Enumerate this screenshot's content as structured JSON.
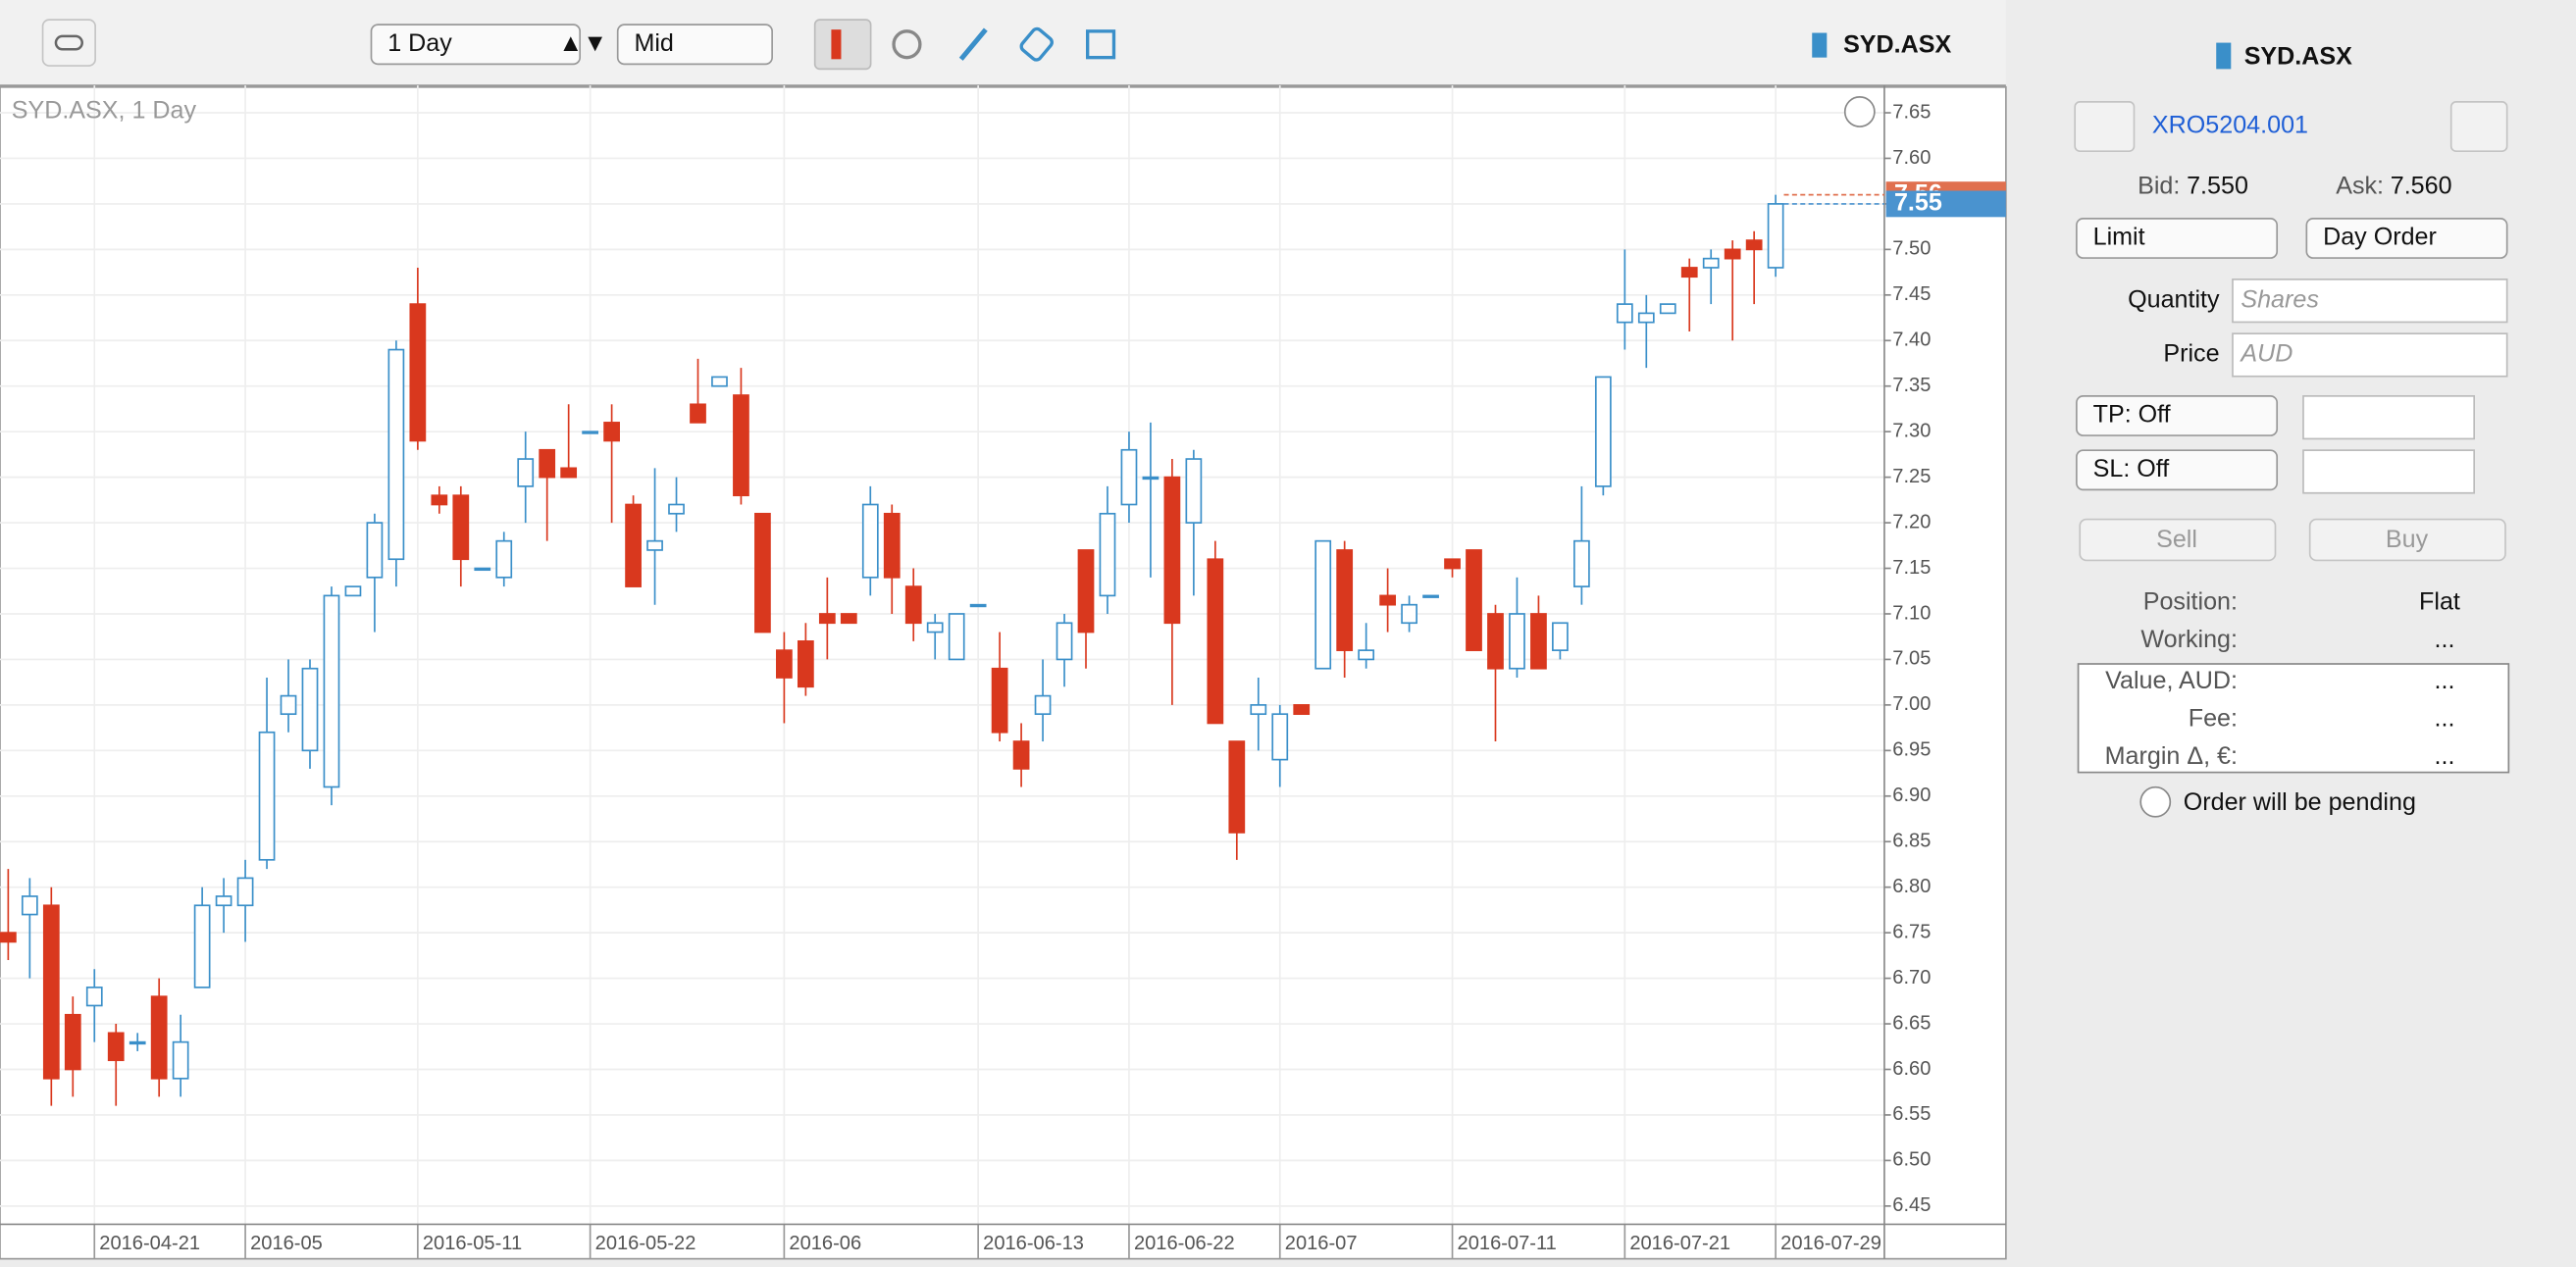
{
  "toolbar": {
    "timeframe": "1 Day",
    "price_type": "Mid",
    "symbol": "SYD.ASX"
  },
  "chart_data": {
    "type": "candlestick",
    "title": "SYD.ASX, 1 Day",
    "categories": [
      null,
      null,
      null,
      null,
      "2016-04-21",
      null,
      null,
      null,
      null,
      null,
      null,
      "2016-05",
      null,
      null,
      null,
      null,
      null,
      null,
      null,
      "2016-05-11",
      null,
      null,
      null,
      null,
      null,
      null,
      null,
      "2016-05-22",
      null,
      null,
      null,
      null,
      null,
      null,
      null,
      null,
      "2016-06",
      null,
      null,
      null,
      null,
      null,
      null,
      null,
      null,
      "2016-06-13",
      null,
      null,
      null,
      null,
      null,
      null,
      "2016-06-22",
      null,
      null,
      null,
      null,
      null,
      null,
      "2016-07",
      null,
      null,
      null,
      null,
      null,
      null,
      null,
      "2016-07-11",
      null,
      null,
      null,
      null,
      null,
      null,
      null,
      "2016-07-21",
      null,
      null,
      null,
      null,
      null,
      null,
      "2016-07-29"
    ],
    "open": [
      6.75,
      6.77,
      6.78,
      6.66,
      6.67,
      6.64,
      6.63,
      6.68,
      6.59,
      6.69,
      6.78,
      6.78,
      6.83,
      6.99,
      6.95,
      6.91,
      7.12,
      7.14,
      7.16,
      7.44,
      7.23,
      7.23,
      7.15,
      7.14,
      7.24,
      7.28,
      7.26,
      7.3,
      7.31,
      7.22,
      7.17,
      7.21,
      7.33,
      7.35,
      7.34,
      7.21,
      7.06,
      7.07,
      7.1,
      7.1,
      7.14,
      7.21,
      7.13,
      7.08,
      7.05,
      7.11,
      7.04,
      6.96,
      6.99,
      7.05,
      7.17,
      7.12,
      7.22,
      7.25,
      7.25,
      7.2,
      7.16,
      6.96,
      6.99,
      6.94,
      7.0,
      7.04,
      7.17,
      7.05,
      7.12,
      7.09,
      7.12,
      7.16,
      7.17,
      7.1,
      7.04,
      7.1,
      7.06,
      7.13,
      7.24,
      7.42,
      7.42,
      7.43,
      7.48,
      7.48,
      7.5,
      7.51,
      7.48
    ],
    "high": [
      6.82,
      6.81,
      6.8,
      6.68,
      6.71,
      6.65,
      6.64,
      6.7,
      6.66,
      6.8,
      6.81,
      6.83,
      7.03,
      7.05,
      7.05,
      7.13,
      7.13,
      7.21,
      7.4,
      7.48,
      7.24,
      7.24,
      7.15,
      7.19,
      7.3,
      7.28,
      7.33,
      7.3,
      7.33,
      7.23,
      7.26,
      7.25,
      7.38,
      7.36,
      7.37,
      7.21,
      7.08,
      7.09,
      7.14,
      7.1,
      7.24,
      7.22,
      7.15,
      7.1,
      7.1,
      7.11,
      7.08,
      6.98,
      7.05,
      7.1,
      7.17,
      7.24,
      7.3,
      7.31,
      7.27,
      7.28,
      7.18,
      6.96,
      7.03,
      7.0,
      7.0,
      7.18,
      7.18,
      7.09,
      7.15,
      7.12,
      7.12,
      7.16,
      7.17,
      7.11,
      7.14,
      7.12,
      7.09,
      7.24,
      7.36,
      7.5,
      7.45,
      7.44,
      7.49,
      7.5,
      7.51,
      7.52,
      7.56
    ],
    "low": [
      6.72,
      6.7,
      6.56,
      6.57,
      6.63,
      6.56,
      6.62,
      6.57,
      6.57,
      6.69,
      6.75,
      6.74,
      6.82,
      6.97,
      6.93,
      6.89,
      7.12,
      7.08,
      7.13,
      7.28,
      7.21,
      7.13,
      7.15,
      7.13,
      7.2,
      7.18,
      7.25,
      7.3,
      7.2,
      7.13,
      7.11,
      7.19,
      7.31,
      7.35,
      7.22,
      7.08,
      6.98,
      7.01,
      7.05,
      7.09,
      7.12,
      7.1,
      7.07,
      7.05,
      7.05,
      7.11,
      6.96,
      6.91,
      6.96,
      7.02,
      7.04,
      7.1,
      7.2,
      7.14,
      7.0,
      7.12,
      6.98,
      6.83,
      6.95,
      6.91,
      6.99,
      7.04,
      7.03,
      7.04,
      7.08,
      7.08,
      7.12,
      7.14,
      7.06,
      6.96,
      7.03,
      7.04,
      7.05,
      7.11,
      7.23,
      7.39,
      7.37,
      7.43,
      7.41,
      7.44,
      7.4,
      7.44,
      7.47
    ],
    "close": [
      6.74,
      6.79,
      6.59,
      6.6,
      6.69,
      6.61,
      6.63,
      6.59,
      6.63,
      6.78,
      6.79,
      6.81,
      6.97,
      7.01,
      7.04,
      7.12,
      7.13,
      7.2,
      7.39,
      7.29,
      7.22,
      7.16,
      7.15,
      7.18,
      7.27,
      7.25,
      7.25,
      7.3,
      7.29,
      7.13,
      7.18,
      7.22,
      7.31,
      7.36,
      7.23,
      7.08,
      7.03,
      7.02,
      7.09,
      7.09,
      7.22,
      7.14,
      7.09,
      7.09,
      7.1,
      7.11,
      6.97,
      6.93,
      7.01,
      7.09,
      7.08,
      7.21,
      7.28,
      7.25,
      7.09,
      7.27,
      6.98,
      6.86,
      7.0,
      6.99,
      6.99,
      7.18,
      7.06,
      7.06,
      7.11,
      7.11,
      7.12,
      7.15,
      7.06,
      7.04,
      7.1,
      7.04,
      7.09,
      7.18,
      7.36,
      7.44,
      7.43,
      7.44,
      7.47,
      7.49,
      7.49,
      7.5,
      7.55
    ],
    "up_color": "#3a8fc9",
    "down_color": "#d9381e",
    "ask_marker": 7.56,
    "bid_marker": 7.55,
    "ask_color": "#e0704f",
    "bid_color": "#4a93cf",
    "ylim": [
      6.43,
      7.68
    ],
    "yticks": [
      6.45,
      {
        "value": 6.5,
        "label": "6.50"
      },
      6.55,
      {
        "value": 6.6,
        "label": "6.60"
      },
      6.65,
      {
        "value": 6.7,
        "label": "6.70"
      },
      6.75,
      {
        "value": 6.8,
        "label": "6.80"
      },
      6.85,
      {
        "value": 6.9,
        "label": "6.90"
      },
      6.95,
      {
        "value": 7,
        "label": "7.00"
      },
      7.05,
      {
        "value": 7.1,
        "label": "7.10"
      },
      7.15,
      {
        "value": 7.2,
        "label": "7.20"
      },
      7.25,
      {
        "value": 7.3,
        "label": "7.30"
      },
      7.35,
      {
        "value": 7.4,
        "label": "7.40"
      },
      7.45,
      {
        "value": 7.5,
        "label": "7.50"
      },
      7.55,
      {
        "value": 7.6,
        "label": "7.60"
      },
      7.65
    ],
    "grid": true
  },
  "order_panel": {
    "symbol": "SYD.ASX",
    "account": "XRO5204.001",
    "bid_label": "Bid:",
    "bid": "7.550",
    "ask_label": "Ask:",
    "ask": "7.560",
    "order_type": "Limit",
    "duration": "Day Order",
    "quantity_label": "Quantity",
    "quantity_placeholder": "Shares",
    "price_label": "Price",
    "price_placeholder": "AUD",
    "take_profit": "TP: Off",
    "stop_loss": "SL: Off",
    "sell": "Sell",
    "buy": "Buy",
    "position_label": "Position:",
    "position": "Flat",
    "working_label": "Working:",
    "working": "...",
    "value_label": "Value, AUD:",
    "value": "...",
    "fee_label": "Fee:",
    "fee": "...",
    "margin_label": "Margin Δ, €:",
    "margin": "...",
    "status": "Order will be pending"
  }
}
